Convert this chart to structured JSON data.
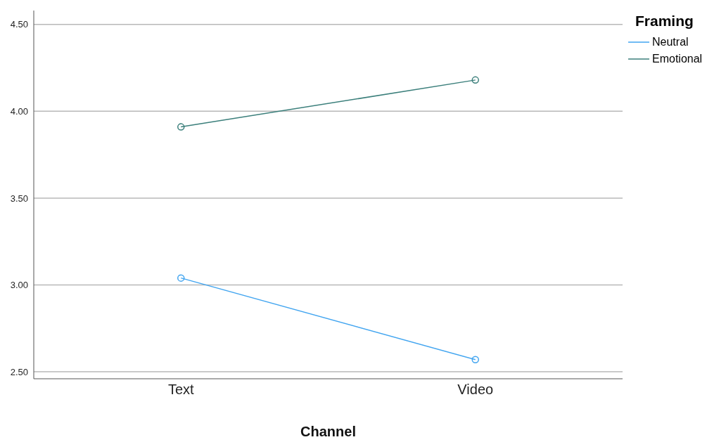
{
  "chart_data": {
    "type": "line",
    "xlabel": "Channel",
    "legend_title": "Framing",
    "categories": [
      "Text",
      "Video"
    ],
    "series": [
      {
        "name": "Neutral",
        "color": "#42a5f0",
        "values": [
          3.04,
          2.57
        ]
      },
      {
        "name": "Emotional",
        "color": "#3b7f7b",
        "values": [
          3.91,
          4.18
        ]
      }
    ],
    "ylim": [
      2.46,
      4.58
    ],
    "yticks": [
      {
        "value": 2.5,
        "label": "2.50"
      },
      {
        "value": 3,
        "label": "3.00"
      },
      {
        "value": 3.5,
        "label": "3.50"
      },
      {
        "value": 4,
        "label": "4.00"
      },
      {
        "value": 4.5,
        "label": "4.50"
      }
    ],
    "grid": "y",
    "legend": "top right",
    "marker": "circle",
    "line_style": "solid"
  }
}
